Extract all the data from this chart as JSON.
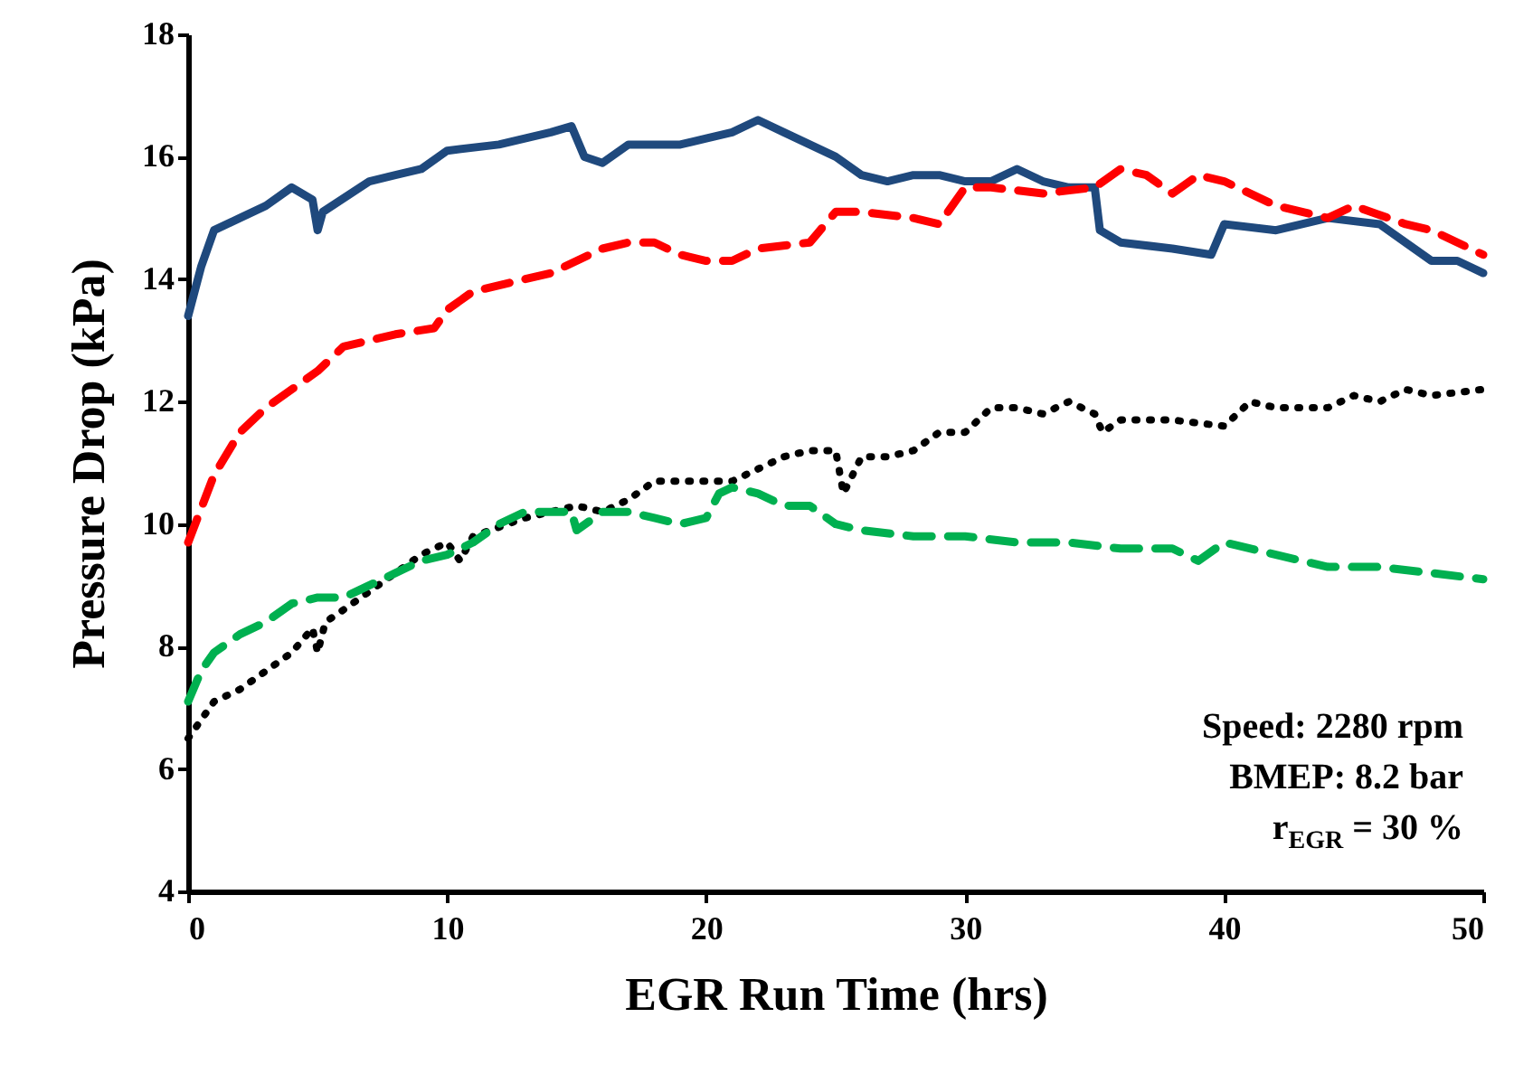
{
  "chart_data": {
    "type": "line",
    "xlabel": "EGR Run Time (hrs)",
    "ylabel": "Pressure Drop (kPa)",
    "xlim": [
      0,
      50
    ],
    "xticks": [
      0,
      10,
      20,
      30,
      40,
      50
    ],
    "ylim": [
      4,
      18
    ],
    "yticks": [
      4,
      6,
      8,
      10,
      12,
      14,
      16,
      18
    ],
    "grid": false,
    "marker": "none",
    "annotations": [
      "Speed: 2280 rpm",
      "BMEP: 8.2 bar",
      "r$_{EGR}$ = 30 %"
    ],
    "series": [
      {
        "color": "#1f497d",
        "line_style": "solid",
        "x": [
          0,
          0.5,
          1,
          2,
          3,
          4,
          4.8,
          5,
          5.2,
          7,
          8,
          9,
          10,
          12,
          14,
          14.8,
          15.3,
          16,
          17,
          19,
          20,
          21,
          22,
          23,
          24,
          25,
          26,
          27,
          28,
          29,
          30,
          31,
          32,
          33,
          34,
          35,
          35.2,
          36,
          38,
          39.5,
          40,
          42,
          44,
          46,
          47,
          48,
          49,
          50
        ],
        "values": [
          13.4,
          14.2,
          14.8,
          15.0,
          15.2,
          15.5,
          15.3,
          14.8,
          15.1,
          15.6,
          15.7,
          15.8,
          16.1,
          16.2,
          16.4,
          16.5,
          16.0,
          15.9,
          16.2,
          16.2,
          16.3,
          16.4,
          16.6,
          16.4,
          16.2,
          16.0,
          15.7,
          15.6,
          15.7,
          15.7,
          15.6,
          15.6,
          15.8,
          15.6,
          15.5,
          15.5,
          14.8,
          14.6,
          14.5,
          14.4,
          14.9,
          14.8,
          15.0,
          14.9,
          14.6,
          14.3,
          14.3,
          14.1
        ]
      },
      {
        "color": "#ff0000",
        "line_style": "dashed",
        "x": [
          0,
          1,
          2,
          3,
          5,
          6,
          8,
          9.5,
          10,
          11,
          13,
          14,
          16,
          17,
          18,
          19,
          20,
          21,
          22,
          24,
          25,
          26,
          28,
          29,
          30,
          31,
          33,
          35,
          36,
          37,
          38,
          39,
          40,
          42,
          44,
          45,
          47,
          48,
          50
        ],
        "values": [
          9.7,
          10.8,
          11.5,
          11.9,
          12.5,
          12.9,
          13.1,
          13.2,
          13.5,
          13.8,
          14.0,
          14.1,
          14.5,
          14.6,
          14.6,
          14.4,
          14.3,
          14.3,
          14.5,
          14.6,
          15.1,
          15.1,
          15.0,
          14.9,
          15.5,
          15.5,
          15.4,
          15.5,
          15.8,
          15.7,
          15.4,
          15.7,
          15.6,
          15.2,
          15.0,
          15.2,
          14.9,
          14.8,
          14.4
        ]
      },
      {
        "color": "#000000",
        "line_style": "dotted",
        "x": [
          0,
          0.5,
          1,
          2,
          3,
          4,
          4.8,
          5,
          5.3,
          6,
          7,
          8,
          9,
          10,
          10.5,
          11,
          13,
          14,
          15,
          16,
          17,
          18,
          19,
          20,
          21,
          22,
          23,
          24,
          25,
          25.3,
          26,
          27,
          28,
          29,
          30,
          31,
          32,
          33,
          34,
          35,
          35.3,
          36,
          38,
          40,
          41,
          42,
          44,
          45,
          46,
          47,
          48,
          50
        ],
        "values": [
          6.5,
          6.8,
          7.1,
          7.3,
          7.6,
          7.9,
          8.3,
          7.9,
          8.4,
          8.6,
          8.9,
          9.2,
          9.5,
          9.7,
          9.4,
          9.8,
          10.1,
          10.2,
          10.3,
          10.2,
          10.4,
          10.7,
          10.7,
          10.7,
          10.7,
          10.9,
          11.1,
          11.2,
          11.2,
          10.5,
          11.1,
          11.1,
          11.2,
          11.5,
          11.5,
          11.9,
          11.9,
          11.8,
          12.0,
          11.8,
          11.5,
          11.7,
          11.7,
          11.6,
          12.0,
          11.9,
          11.9,
          12.1,
          12.0,
          12.2,
          12.1,
          12.2
        ]
      },
      {
        "color": "#00b050",
        "line_style": "dashed",
        "x": [
          0,
          0.5,
          1,
          2,
          3,
          4,
          5,
          6,
          7,
          8,
          9,
          10,
          11,
          12,
          13,
          14,
          14.8,
          15,
          16,
          17,
          18,
          19,
          20,
          20.5,
          21,
          22,
          23,
          24,
          25,
          26,
          28,
          30,
          32,
          34,
          36,
          38,
          39,
          40,
          42,
          44,
          46,
          48,
          50
        ],
        "values": [
          7.1,
          7.6,
          7.9,
          8.2,
          8.4,
          8.7,
          8.8,
          8.8,
          9.0,
          9.2,
          9.4,
          9.5,
          9.7,
          10.0,
          10.2,
          10.2,
          10.2,
          9.9,
          10.2,
          10.2,
          10.1,
          10.0,
          10.1,
          10.5,
          10.6,
          10.5,
          10.3,
          10.3,
          10.0,
          9.9,
          9.8,
          9.8,
          9.7,
          9.7,
          9.6,
          9.6,
          9.4,
          9.7,
          9.5,
          9.3,
          9.3,
          9.2,
          9.1
        ]
      }
    ]
  }
}
